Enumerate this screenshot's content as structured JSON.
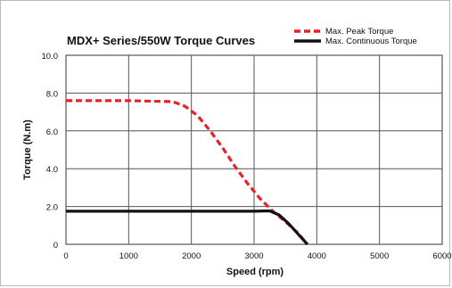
{
  "chart_data": {
    "type": "line",
    "title": "MDX+ Series/550W Torque Curves",
    "xlabel": "Speed (rpm)",
    "ylabel": "Torque (N.m)",
    "xlim": [
      0,
      6000
    ],
    "ylim": [
      0,
      10
    ],
    "x_ticks": [
      "0",
      "1000",
      "2000",
      "3000",
      "4000",
      "5000",
      "6000"
    ],
    "y_ticks": [
      "0",
      "2.0",
      "4.0",
      "6.0",
      "8.0",
      "10.0"
    ],
    "grid": true,
    "legend_position": "top-right",
    "series": [
      {
        "name": "Max. Peak Torque",
        "style": "dashed",
        "color": "#e8202a",
        "points": [
          [
            0,
            7.6
          ],
          [
            1000,
            7.6
          ],
          [
            1500,
            7.56
          ],
          [
            1700,
            7.55
          ],
          [
            1900,
            7.3
          ],
          [
            2100,
            6.8
          ],
          [
            2300,
            6.0
          ],
          [
            2500,
            5.1
          ],
          [
            2700,
            4.1
          ],
          [
            2900,
            3.2
          ],
          [
            3100,
            2.4
          ],
          [
            3300,
            1.75
          ],
          [
            3500,
            1.2
          ],
          [
            3700,
            0.6
          ],
          [
            3850,
            0.0
          ]
        ]
      },
      {
        "name": "Max. Continuous Torque",
        "style": "solid",
        "color": "#111111",
        "points": [
          [
            0,
            1.75
          ],
          [
            3000,
            1.75
          ],
          [
            3250,
            1.77
          ],
          [
            3400,
            1.55
          ],
          [
            3550,
            1.1
          ],
          [
            3700,
            0.55
          ],
          [
            3850,
            0.0
          ]
        ]
      }
    ]
  }
}
